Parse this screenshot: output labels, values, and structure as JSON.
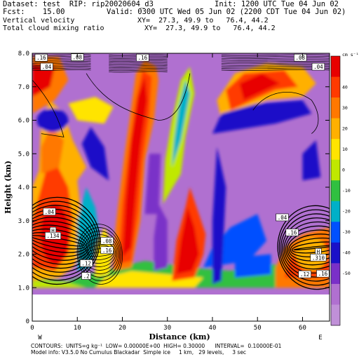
{
  "header": {
    "dataset_line": "Dataset: test  RIP: rip20020604_d3",
    "init_line": "Init: 1200 UTC Tue 04 Jun 02",
    "fcst_line": "Fcst:    15.00",
    "valid_line": "Valid: 0300 UTC Wed 05 Jun 02 (2200 CDT Tue 04 Jun 02)",
    "field1_name": "Vertical velocity",
    "field1_xy": "XY=  27.3, 49.9 to   76.4, 44.2",
    "field2_name": "Total cloud mixing ratio",
    "field2_xy": "XY=  27.3, 49.9 to   76.4, 44.2"
  },
  "footer": {
    "contours_line": "CONTOURS:  UNITS=g kg⁻¹  LOW= 0.00000E+00  HIGH= 0.30000      INTERVAL=  0.10000E-01",
    "model_line": "Model info: V3.5.0 No Cumulus Blackadar  Simple ice     1 km,   29 levels,     3 sec"
  },
  "chart_data": {
    "type": "heatmap",
    "title": "Vertical velocity / Total cloud mixing ratio cross section",
    "xlabel": "Distance (km)",
    "ylabel": "Height (km)",
    "xlim": [
      0,
      66
    ],
    "ylim": [
      0,
      8
    ],
    "x_ticks": [
      0,
      10,
      20,
      30,
      40,
      50,
      60
    ],
    "y_ticks": [
      "0",
      "1.0",
      "2.0",
      "3.0",
      "4.0",
      "5.0",
      "6.0",
      "7.0",
      "8.0"
    ],
    "x_end_labels": {
      "left": "W",
      "right": "E"
    },
    "colorbar": {
      "units": "cm s⁻¹",
      "levels": [
        40,
        30,
        20,
        10,
        0,
        -10,
        -20,
        -30,
        -40,
        -50
      ],
      "colors": [
        "#e80000",
        "#ff3a00",
        "#ff7800",
        "#ffb000",
        "#ffe400",
        "#c0e800",
        "#30c040",
        "#00b0c8",
        "#0050ff",
        "#1a10c8",
        "#7a30c8",
        "#b070d0",
        "#c090d8"
      ]
    },
    "contour_labels": [
      {
        "text": ".16",
        "x": 2,
        "y": 7.87
      },
      {
        "text": ".04",
        "x": 3.2,
        "y": 7.6
      },
      {
        "text": ".08",
        "x": 10,
        "y": 7.88
      },
      {
        "text": ".16",
        "x": 24.5,
        "y": 7.87
      },
      {
        "text": ".08",
        "x": 59.5,
        "y": 7.87
      },
      {
        "text": ".04",
        "x": 63.5,
        "y": 7.6
      },
      {
        "text": ".04",
        "x": 3.8,
        "y": 3.27
      },
      {
        "text": "H",
        "x": 4.6,
        "y": 2.7
      },
      {
        "text": ".134",
        "x": 4.6,
        "y": 2.55
      },
      {
        "text": ".08",
        "x": 16.6,
        "y": 2.4
      },
      {
        "text": ".16",
        "x": 16.6,
        "y": 2.12
      },
      {
        "text": ".12",
        "x": 12,
        "y": 1.73
      },
      {
        "text": ".2",
        "x": 12,
        "y": 1.35
      },
      {
        "text": ".04",
        "x": 55.5,
        "y": 3.1
      },
      {
        "text": ".16",
        "x": 57.7,
        "y": 2.65
      },
      {
        "text": "H",
        "x": 63.5,
        "y": 2.07
      },
      {
        "text": ".310",
        "x": 63.5,
        "y": 1.9
      },
      {
        "text": ".12",
        "x": 60.5,
        "y": 1.4
      },
      {
        "text": ".16",
        "x": 64.5,
        "y": 1.42
      }
    ]
  }
}
